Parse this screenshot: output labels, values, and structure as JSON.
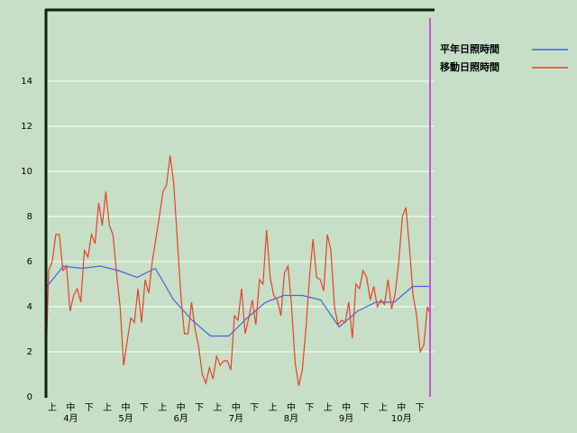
{
  "chart_data": {
    "type": "line",
    "series": [
      {
        "name": "平年日照時間",
        "color": "#4466e8",
        "values": [
          4.8,
          5.8,
          5.7,
          5.8,
          5.6,
          5.3,
          5.7,
          4.3,
          3.4,
          2.7,
          2.7,
          3.5,
          4.2,
          4.5,
          4.5,
          4.3,
          3.1,
          3.8,
          4.2,
          4.2,
          4.9,
          4.9
        ]
      },
      {
        "name": "移動日照時間",
        "color": "#e8402a",
        "values": [
          0,
          5.6,
          6.0,
          7.2,
          7.2,
          5.6,
          5.8,
          3.8,
          4.5,
          4.8,
          4.2,
          6.5,
          6.2,
          7.2,
          6.8,
          8.6,
          7.6,
          9.1,
          7.6,
          7.2,
          5.5,
          4.0,
          1.4,
          2.5,
          3.5,
          3.3,
          4.8,
          3.3,
          5.2,
          4.6,
          6.0,
          7.0,
          8.0,
          9.1,
          9.4,
          10.7,
          9.5,
          7.0,
          4.5,
          2.8,
          2.8,
          4.2,
          3.0,
          2.2,
          1.0,
          0.6,
          1.3,
          0.8,
          1.8,
          1.4,
          1.6,
          1.6,
          1.2,
          3.6,
          3.4,
          4.8,
          2.8,
          3.5,
          4.3,
          3.2,
          5.2,
          5.0,
          7.4,
          5.3,
          4.5,
          4.3,
          3.6,
          5.5,
          5.8,
          4.0,
          1.5,
          0.5,
          1.2,
          3.0,
          5.3,
          7.0,
          5.3,
          5.2,
          4.7,
          7.2,
          6.5,
          4.0,
          3.2,
          3.4,
          3.3,
          4.2,
          2.6,
          5.0,
          4.8,
          5.6,
          5.3,
          4.3,
          4.9,
          4.0,
          4.3,
          4.1,
          5.2,
          3.9,
          4.6,
          6.0,
          8.0,
          8.4,
          6.6,
          4.5,
          3.6,
          2.0,
          2.3,
          4.0,
          3.6
        ]
      }
    ],
    "x_labels": [
      "上",
      "中",
      "下",
      "上",
      "中",
      "下",
      "上",
      "中",
      "下",
      "上",
      "中",
      "下",
      "上",
      "中",
      "下",
      "上",
      "中",
      "下",
      "上",
      "中",
      "下"
    ],
    "month_labels": [
      "4月",
      "5月",
      "6月",
      "7月",
      "8月",
      "9月",
      "10月"
    ],
    "ylim": [
      0,
      17.2
    ],
    "yticks": [
      0,
      2,
      4,
      6,
      8,
      10,
      12,
      14
    ],
    "grid": true
  }
}
